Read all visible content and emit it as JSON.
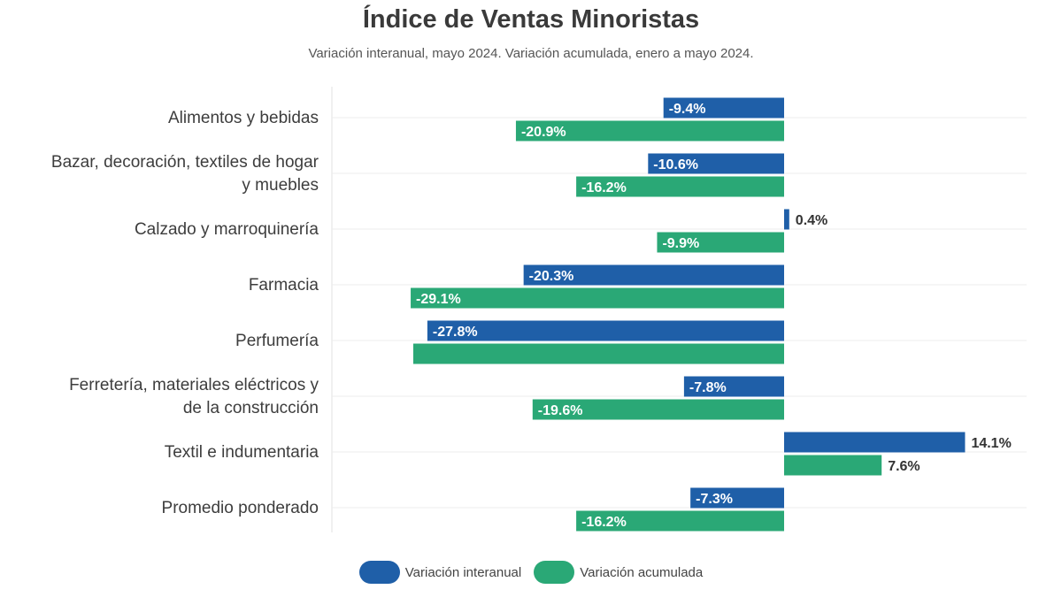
{
  "chart_data": {
    "type": "bar",
    "orientation": "horizontal",
    "title": "Índice de Ventas Minoristas",
    "subtitle": "Variación interanual, mayo 2024. Variación acumulada, enero a mayo 2024.",
    "categories": [
      "Alimentos y bebidas",
      "Bazar, decoración, textiles de hogar y muebles",
      "Calzado y marroquinería",
      "Farmacia",
      "Perfumería",
      "Ferretería, materiales eléctricos y de la construcción",
      "Textil e indumentaria",
      "Promedio ponderado"
    ],
    "category_lines": [
      [
        "Alimentos y bebidas"
      ],
      [
        "Bazar, decoración, textiles de hogar",
        "y muebles"
      ],
      [
        "Calzado y marroquinería"
      ],
      [
        "Farmacia"
      ],
      [
        "Perfumería"
      ],
      [
        "Ferretería, materiales eléctricos y",
        "de la construcción"
      ],
      [
        "Textil e indumentaria"
      ],
      [
        "Promedio ponderado"
      ]
    ],
    "series": [
      {
        "name": "Variación interanual",
        "color": "#1f5fa8",
        "values": [
          -9.4,
          -10.6,
          0.4,
          -20.3,
          -27.8,
          -7.8,
          14.1,
          -7.3
        ],
        "labels": [
          "-9.4%",
          "-10.6%",
          "0.4%",
          "-20.3%",
          "-27.8%",
          "-7.8%",
          "14.1%",
          "-7.3%"
        ]
      },
      {
        "name": "Variación acumulada",
        "color": "#2aa876",
        "values": [
          -20.9,
          -16.2,
          -9.9,
          -29.1,
          -28.9,
          -19.6,
          7.6,
          -16.2
        ],
        "labels": [
          "-20.9%",
          "-16.2%",
          "-9.9%",
          "-29.1%",
          "",
          "-19.6%",
          "7.6%",
          "-16.2%"
        ]
      }
    ],
    "xlim": [
      -35,
      20
    ],
    "grid": true,
    "legend": "bottom-center"
  }
}
